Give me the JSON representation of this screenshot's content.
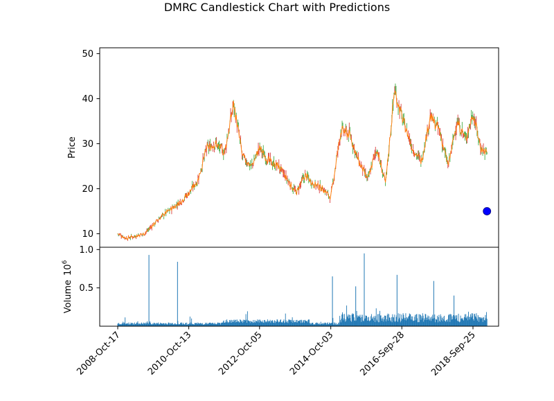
{
  "chart_data": {
    "type": "candlestick",
    "title": "DMRC Candlestick Chart with Predictions",
    "price_panel": {
      "ylabel": "Price",
      "ylim": [
        7,
        51.3
      ],
      "yticks": [
        10,
        20,
        30,
        40,
        50
      ],
      "approx_close_series": {
        "dates": [
          "2008-10-17",
          "2009-01-15",
          "2009-04-15",
          "2009-07-15",
          "2009-10-15",
          "2010-01-15",
          "2010-04-15",
          "2010-07-15",
          "2010-10-13",
          "2011-01-15",
          "2011-04-15",
          "2011-07-15",
          "2011-10-15",
          "2012-01-15",
          "2012-04-15",
          "2012-07-15",
          "2012-10-05",
          "2013-01-15",
          "2013-04-15",
          "2013-07-15",
          "2013-10-15",
          "2014-01-15",
          "2014-04-15",
          "2014-07-15",
          "2014-10-03",
          "2015-01-15",
          "2015-04-15",
          "2015-07-15",
          "2015-10-15",
          "2016-01-15",
          "2016-04-15",
          "2016-07-15",
          "2016-09-28",
          "2017-01-15",
          "2017-04-15",
          "2017-07-15",
          "2017-10-15",
          "2018-01-15",
          "2018-04-15",
          "2018-07-15",
          "2018-09-25",
          "2018-12-15",
          "2019-02-15"
        ],
        "close": [
          10,
          9,
          9.5,
          10,
          12,
          14,
          15.5,
          17,
          19,
          22,
          29,
          30,
          28,
          39,
          27,
          25,
          29,
          26,
          25,
          22,
          19,
          23,
          21,
          20,
          18,
          33,
          32,
          26,
          22,
          29,
          21,
          42,
          36,
          29,
          26,
          36,
          33,
          25,
          35,
          31,
          37,
          29,
          28
        ]
      },
      "prediction": {
        "date": "2019-02-15",
        "value": 15
      }
    },
    "volume_panel": {
      "ylabel": "Volume",
      "scale_label": "10",
      "scale_exponent": "6",
      "ylim": [
        0,
        1.03
      ],
      "yticks": [
        0.5,
        1.0
      ],
      "ytick_labels": [
        "0.5",
        "1.0"
      ],
      "spikes": [
        {
          "date": "2009-09-01",
          "value": 0.93
        },
        {
          "date": "2010-06-20",
          "value": 0.84
        },
        {
          "date": "2014-10-20",
          "value": 0.65
        },
        {
          "date": "2015-06-15",
          "value": 0.52
        },
        {
          "date": "2015-09-10",
          "value": 0.95
        },
        {
          "date": "2016-08-10",
          "value": 0.67
        },
        {
          "date": "2017-08-20",
          "value": 0.59
        },
        {
          "date": "2018-03-15",
          "value": 0.4
        }
      ]
    },
    "x_axis": {
      "tick_labels": [
        "2008-Oct-17",
        "2010-Oct-13",
        "2012-Oct-05",
        "2014-Oct-03",
        "2016-Sep-28",
        "2018-Sep-25"
      ],
      "tick_dates": [
        "2008-10-17",
        "2010-10-13",
        "2012-10-05",
        "2014-10-03",
        "2016-09-28",
        "2018-09-25"
      ]
    },
    "colors": {
      "close_line": "#ff7f0e",
      "up_wick": "#2ca02c",
      "down_wick": "#d62728",
      "volume": "#1f77b4",
      "prediction": "#0000ff"
    }
  }
}
